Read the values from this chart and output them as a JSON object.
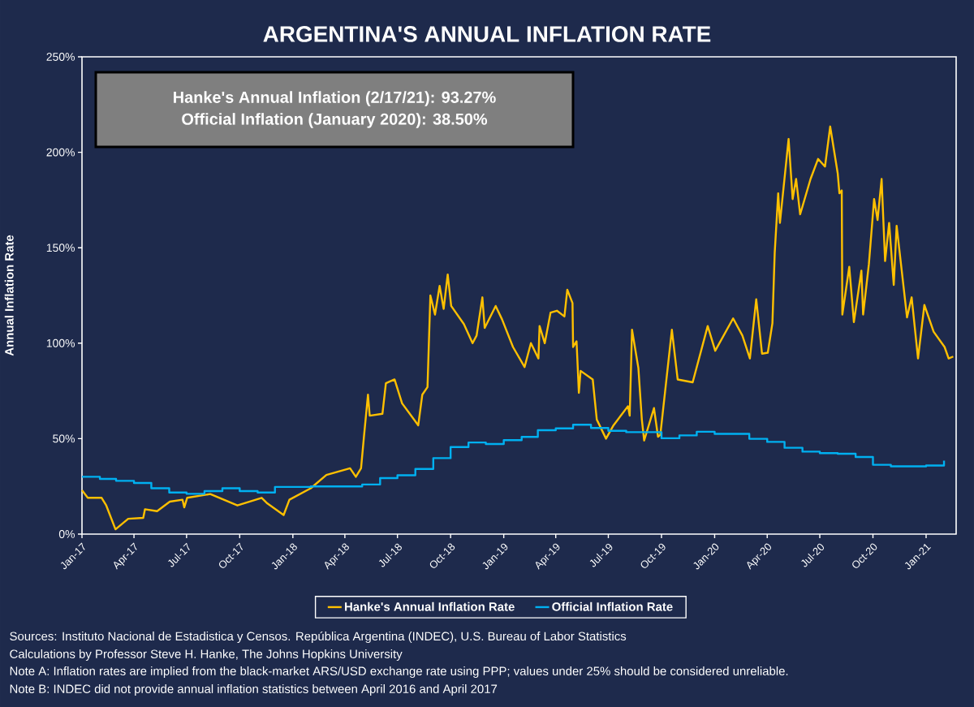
{
  "chart_data": {
    "type": "line",
    "title": "ARGENTINA'S ANNUAL INFLATION RATE",
    "ylabel": "Annual Inflation Rate",
    "xlim": [
      "2017-01-01",
      "2021-02-22"
    ],
    "ylim": [
      0,
      250
    ],
    "xticks": [
      {
        "value": "2017-01-01",
        "label": "Jan-17"
      },
      {
        "value": "2017-04-01",
        "label": "Apr-17"
      },
      {
        "value": "2017-07-01",
        "label": "Jul-17"
      },
      {
        "value": "2017-10-01",
        "label": "Oct-17"
      },
      {
        "value": "2018-01-01",
        "label": "Jan-18"
      },
      {
        "value": "2018-04-01",
        "label": "Apr-18"
      },
      {
        "value": "2018-07-01",
        "label": "Jul-18"
      },
      {
        "value": "2018-10-01",
        "label": "Oct-18"
      },
      {
        "value": "2019-01-01",
        "label": "Jan-19"
      },
      {
        "value": "2019-04-01",
        "label": "Apr-19"
      },
      {
        "value": "2019-07-01",
        "label": "Jul-19"
      },
      {
        "value": "2019-10-01",
        "label": "Oct-19"
      },
      {
        "value": "2020-01-01",
        "label": "Jan-20"
      },
      {
        "value": "2020-04-01",
        "label": "Apr-20"
      },
      {
        "value": "2020-07-01",
        "label": "Jul-20"
      },
      {
        "value": "2020-10-01",
        "label": "Oct-20"
      },
      {
        "value": "2021-01-01",
        "label": "Jan-21"
      }
    ],
    "yticks": [
      {
        "value": 0,
        "label": "0%"
      },
      {
        "value": 50,
        "label": "50%"
      },
      {
        "value": 100,
        "label": "100%"
      },
      {
        "value": 150,
        "label": "150%"
      },
      {
        "value": 200,
        "label": "200%"
      },
      {
        "value": 250,
        "label": "250%"
      }
    ],
    "legend": "bottom",
    "series": [
      {
        "name": "Hanke's Annual Inflation Rate",
        "color": "#ffc000",
        "x": [
          "2017-01-01",
          "2017-01-11",
          "2017-02-04",
          "2017-02-12",
          "2017-02-28",
          "2017-03-22",
          "2017-04-17",
          "2017-04-20",
          "2017-05-11",
          "2017-06-02",
          "2017-06-24",
          "2017-06-27",
          "2017-07-02",
          "2017-08-11",
          "2017-09-27",
          "2017-11-08",
          "2017-11-18",
          "2017-12-16",
          "2017-12-26",
          "2018-02-01",
          "2018-02-28",
          "2018-04-10",
          "2018-04-20",
          "2018-04-29",
          "2018-05-04",
          "2018-05-11",
          "2018-05-14",
          "2018-06-05",
          "2018-06-11",
          "2018-06-26",
          "2018-07-09",
          "2018-08-06",
          "2018-08-13",
          "2018-08-22",
          "2018-08-27",
          "2018-09-04",
          "2018-09-12",
          "2018-09-19",
          "2018-09-26",
          "2018-10-02",
          "2018-10-24",
          "2018-11-08",
          "2018-11-15",
          "2018-11-25",
          "2018-11-29",
          "2018-12-18",
          "2018-12-29",
          "2019-01-17",
          "2019-02-06",
          "2019-02-17",
          "2019-03-02",
          "2019-03-04",
          "2019-03-13",
          "2019-03-23",
          "2019-04-03",
          "2019-04-16",
          "2019-04-21",
          "2019-04-30",
          "2019-05-01",
          "2019-05-07",
          "2019-05-11",
          "2019-05-14",
          "2019-06-04",
          "2019-06-11",
          "2019-06-27",
          "2019-07-10",
          "2019-08-04",
          "2019-08-07",
          "2019-08-11",
          "2019-08-22",
          "2019-08-28",
          "2019-09-01",
          "2019-09-18",
          "2019-09-25",
          "2019-09-29",
          "2019-10-19",
          "2019-10-29",
          "2019-11-24",
          "2019-12-20",
          "2020-01-02",
          "2020-02-02",
          "2020-02-18",
          "2020-03-02",
          "2020-03-13",
          "2020-03-23",
          "2020-04-02",
          "2020-04-10",
          "2020-04-14",
          "2020-04-20",
          "2020-04-23",
          "2020-05-08",
          "2020-05-15",
          "2020-05-21",
          "2020-05-28",
          "2020-06-15",
          "2020-06-28",
          "2020-07-10",
          "2020-07-19",
          "2020-08-01",
          "2020-08-04",
          "2020-08-08",
          "2020-08-09",
          "2020-08-21",
          "2020-08-29",
          "2020-09-11",
          "2020-09-14",
          "2020-09-24",
          "2020-10-03",
          "2020-10-09",
          "2020-10-16",
          "2020-10-22",
          "2020-10-29",
          "2020-11-06",
          "2020-11-11",
          "2020-11-29",
          "2020-12-07",
          "2020-12-18",
          "2020-12-29",
          "2021-01-14",
          "2021-02-02",
          "2021-02-09",
          "2021-02-17"
        ],
        "values": [
          23,
          19,
          19,
          15,
          2.5,
          8,
          8.5,
          13,
          12,
          17,
          18,
          14,
          19,
          21,
          15,
          19,
          16,
          10,
          18,
          24,
          31,
          34.5,
          30,
          34.5,
          51,
          73,
          62,
          63,
          79,
          81,
          68.5,
          57,
          73,
          77,
          125,
          115,
          130,
          118,
          136,
          119.5,
          110,
          100,
          104,
          124,
          108,
          119.5,
          112.5,
          98,
          87.5,
          100,
          92,
          109,
          100,
          116,
          117,
          114,
          128,
          121,
          98,
          101,
          74,
          85.5,
          81,
          60,
          50,
          57,
          67,
          62,
          107,
          87,
          60,
          49,
          66,
          51,
          52,
          107,
          81,
          79.5,
          109,
          96,
          113,
          104,
          92,
          123,
          94.5,
          95,
          110.5,
          147.5,
          178.5,
          163,
          207,
          175.5,
          186,
          167.5,
          186,
          196.5,
          192.5,
          213.5,
          189,
          178.5,
          180,
          115,
          140,
          111,
          138,
          115,
          141.5,
          175.5,
          164.5,
          186,
          143,
          163,
          130.5,
          161.5,
          113.5,
          124,
          92,
          120,
          106,
          98,
          92,
          93
        ]
      },
      {
        "name": "Official Inflation Rate",
        "color": "#00b0f0",
        "type": "step",
        "x": [
          "2017-01-01",
          "2017-02-01",
          "2017-03-01",
          "2017-04-01",
          "2017-05-01",
          "2017-06-01",
          "2017-07-01",
          "2017-08-01",
          "2017-09-01",
          "2017-10-01",
          "2017-11-01",
          "2017-12-01",
          "2018-01-01",
          "2018-02-01",
          "2018-03-01",
          "2018-04-01",
          "2018-05-01",
          "2018-06-01",
          "2018-07-01",
          "2018-08-01",
          "2018-09-01",
          "2018-10-01",
          "2018-11-01",
          "2018-12-01",
          "2019-01-01",
          "2019-02-01",
          "2019-03-01",
          "2019-04-01",
          "2019-05-01",
          "2019-06-01",
          "2019-07-01",
          "2019-08-01",
          "2019-09-01",
          "2019-10-01",
          "2019-11-01",
          "2019-12-01",
          "2020-01-01",
          "2020-02-01",
          "2020-03-01",
          "2020-04-01",
          "2020-05-01",
          "2020-06-01",
          "2020-07-01",
          "2020-08-01",
          "2020-09-01",
          "2020-10-01",
          "2020-11-01",
          "2020-12-01",
          "2021-01-01",
          "2021-02-01"
        ],
        "values": [
          30.0,
          28.9,
          27.9,
          26.8,
          24.0,
          21.8,
          21.1,
          22.5,
          24.0,
          22.5,
          21.8,
          24.7,
          24.7,
          25.0,
          25.0,
          25.0,
          26.0,
          29.3,
          30.8,
          34.1,
          39.8,
          45.6,
          48.0,
          47.2,
          49.2,
          50.9,
          54.4,
          55.4,
          57.3,
          55.6,
          54.1,
          53.4,
          53.4,
          50.2,
          51.7,
          53.6,
          52.5,
          52.5,
          49.9,
          48.3,
          45.2,
          43.2,
          42.4,
          42.1,
          40.4,
          36.3,
          35.5,
          35.5,
          35.9,
          38.5
        ]
      }
    ],
    "annotations": [
      "Hanke's Annual Inflation (2/17/21): 93.27%",
      "Official Inflation (January 2020): 38.50%",
      "Sources: Instituto Nacional de Estadistica y Censos. República Argentina (INDEC), U.S. Bureau of Labor Statistics",
      "Calculations by Professor Steve H. Hanke, The Johns Hopkins University",
      "Note A: Inflation rates are implied from the black-market ARS/USD exchange rate using PPP; values under 25% should be considered unreliable.",
      "Note B: INDEC did not provide annual inflation statistics between April 2016 and April 2017"
    ]
  }
}
